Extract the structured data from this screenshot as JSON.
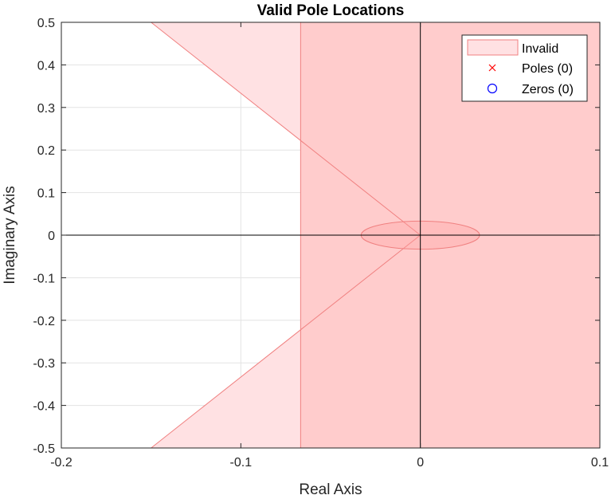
{
  "chart_data": {
    "type": "scatter",
    "title": "Valid Pole Locations",
    "xlabel": "Real Axis",
    "ylabel": "Imaginary Axis",
    "xlim": [
      -0.2,
      0.1
    ],
    "ylim": [
      -0.5,
      0.5
    ],
    "xticks": [
      -0.2,
      -0.1,
      0,
      0.1
    ],
    "xtick_labels": [
      "-0.2",
      "-0.1",
      "0",
      "0.1"
    ],
    "yticks": [
      -0.5,
      -0.4,
      -0.3,
      -0.2,
      -0.1,
      0,
      0.1,
      0.2,
      0.3,
      0.4,
      0.5
    ],
    "ytick_labels": [
      "-0.5",
      "-0.4",
      "-0.3",
      "-0.2",
      "-0.1",
      "0",
      "0.1",
      "0.2",
      "0.3",
      "0.4",
      "0.5"
    ],
    "grid": true,
    "legend_location": "top-right",
    "series": [
      {
        "name": "Invalid",
        "kind": "region",
        "values": []
      },
      {
        "name": "Poles (0)",
        "kind": "marker-x",
        "values": []
      },
      {
        "name": "Zeros (0)",
        "kind": "marker-o",
        "values": []
      }
    ],
    "invalid_regions": {
      "real_part_greater_than": -0.0667,
      "damping_wedge_x_at_ylim": -0.15,
      "natural_frequency_radius": 0.033
    },
    "colors": {
      "region_fill_light": "#ffe1e3",
      "region_fill_dark": "#ffcccc",
      "region_edge": "#f08080",
      "pole_marker": "#ff0000",
      "zero_marker": "#0000ff",
      "grid": "#e3e3e3",
      "axis": "#262626"
    }
  }
}
